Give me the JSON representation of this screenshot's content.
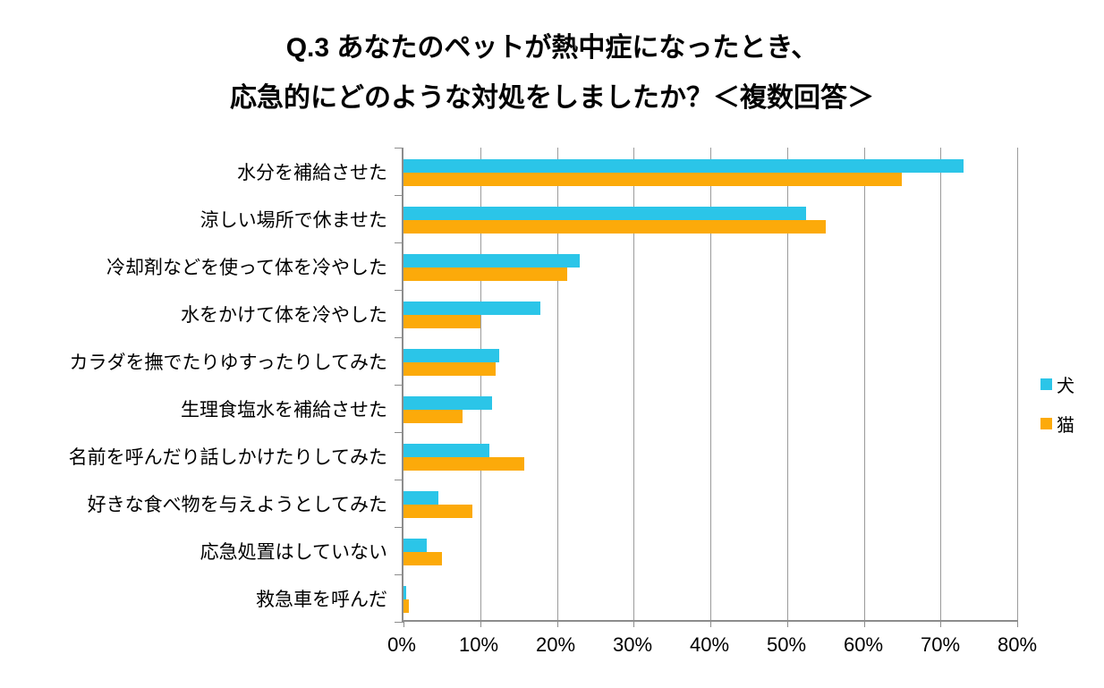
{
  "title": {
    "line1": "Q.3 あなたのペットが熱中症になったとき、",
    "line2": "応急的にどのような対処をしましたか？＜複数回答＞"
  },
  "legend": [
    {
      "label": "犬",
      "color": "#2bc5e8"
    },
    {
      "label": "猫",
      "color": "#fcaa0a"
    }
  ],
  "colors": {
    "dog_bar": "#2bc5e8",
    "cat_bar": "#fcaa0a",
    "gridline": "#9b9b9b",
    "axis": "#8c8c8c",
    "text": "#000000",
    "background": "#ffffff"
  },
  "chart_data": {
    "type": "bar",
    "orientation": "horizontal",
    "title": "Q.3 あなたのペットが熱中症になったとき、応急的にどのような対処をしましたか？＜複数回答＞",
    "categories": [
      "水分を補給させた",
      "涼しい場所で休ませた",
      "冷却剤などを使って体を冷やした",
      "水をかけて体を冷やした",
      "カラダを撫でたりゆすったりしてみた",
      "生理食塩水を補給させた",
      "名前を呼んだり話しかけたりしてみた",
      "好きな食べ物を与えようとしてみた",
      "応急処置はしていない",
      "救急車を呼んだ"
    ],
    "series": [
      {
        "name": "犬",
        "color": "#2bc5e8",
        "values": [
          73,
          52.5,
          23,
          17.8,
          12.5,
          11.5,
          11.2,
          4.5,
          3,
          0.4
        ]
      },
      {
        "name": "猫",
        "color": "#fcaa0a",
        "values": [
          65,
          55,
          21.3,
          10,
          12,
          7.7,
          15.7,
          9,
          5,
          0.7
        ]
      }
    ],
    "x_axis": {
      "unit": "%",
      "min": 0,
      "max": 80,
      "tick_step": 10,
      "ticks": [
        "0%",
        "10%",
        "20%",
        "30%",
        "40%",
        "50%",
        "60%",
        "70%",
        "80%"
      ]
    },
    "grid": true,
    "legend_position": "right"
  }
}
